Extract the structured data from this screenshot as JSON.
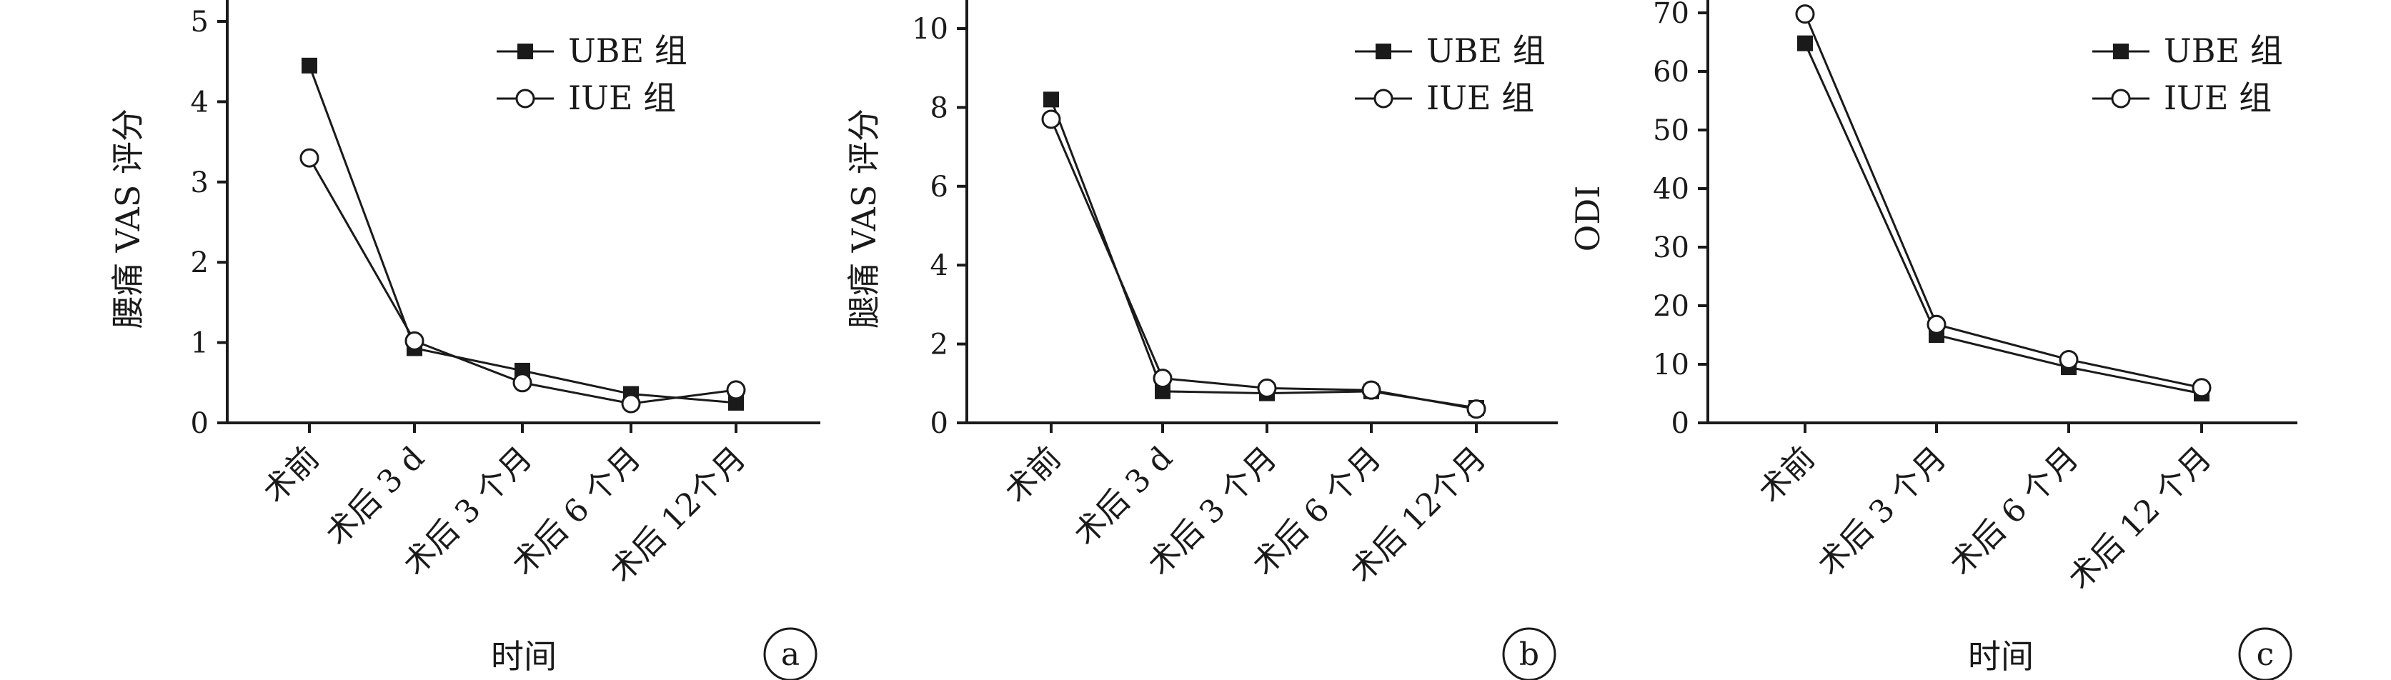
{
  "chart_data": [
    {
      "type": "line",
      "panel_label": "a",
      "categories": [
        "术前",
        "术后 3 d",
        "术后 3 个月",
        "术后 6 个月",
        "术后 12个月"
      ],
      "xlabel": "时间",
      "ylabel": "腰痛 VAS 评分",
      "ylim": [
        0,
        5
      ],
      "yticks": [
        0,
        1,
        2,
        3,
        4,
        5
      ],
      "legend_position": "top-right",
      "series": [
        {
          "name": "UBE 组",
          "marker": "filled-square",
          "values": [
            4.45,
            0.93,
            0.65,
            0.36,
            0.25
          ]
        },
        {
          "name": "IUE 组",
          "marker": "open-circle",
          "values": [
            3.3,
            1.02,
            0.5,
            0.24,
            0.41
          ]
        }
      ]
    },
    {
      "type": "line",
      "panel_label": "b",
      "categories": [
        "术前",
        "术后 3 d",
        "术后 3 个月",
        "术后 6 个月",
        "术后 12个月"
      ],
      "xlabel": "",
      "ylabel": "腿痛 VAS 评分",
      "ylim": [
        0,
        10
      ],
      "yticks": [
        0,
        2,
        4,
        6,
        8,
        10
      ],
      "legend_position": "top-right",
      "series": [
        {
          "name": "UBE 组",
          "marker": "filled-square",
          "values": [
            8.2,
            0.8,
            0.75,
            0.8,
            0.38
          ]
        },
        {
          "name": "IUE 组",
          "marker": "open-circle",
          "values": [
            7.7,
            1.13,
            0.88,
            0.83,
            0.35
          ]
        }
      ]
    },
    {
      "type": "line",
      "panel_label": "c",
      "categories": [
        "术前",
        "术后 3 个月",
        "术后 6 个月",
        "术后 12 个月"
      ],
      "xlabel": "时间",
      "ylabel": "ODI",
      "ylim": [
        0,
        70
      ],
      "yticks": [
        0,
        10,
        20,
        30,
        40,
        50,
        60,
        70
      ],
      "legend_position": "top-right",
      "series": [
        {
          "name": "UBE 组",
          "marker": "filled-square",
          "values": [
            64.8,
            15.0,
            9.5,
            5.0
          ]
        },
        {
          "name": "IUE 组",
          "marker": "open-circle",
          "values": [
            69.8,
            16.8,
            10.8,
            6.0
          ]
        }
      ]
    }
  ],
  "colors": {
    "line": "#1a1a1a",
    "background": "#ffffff"
  }
}
